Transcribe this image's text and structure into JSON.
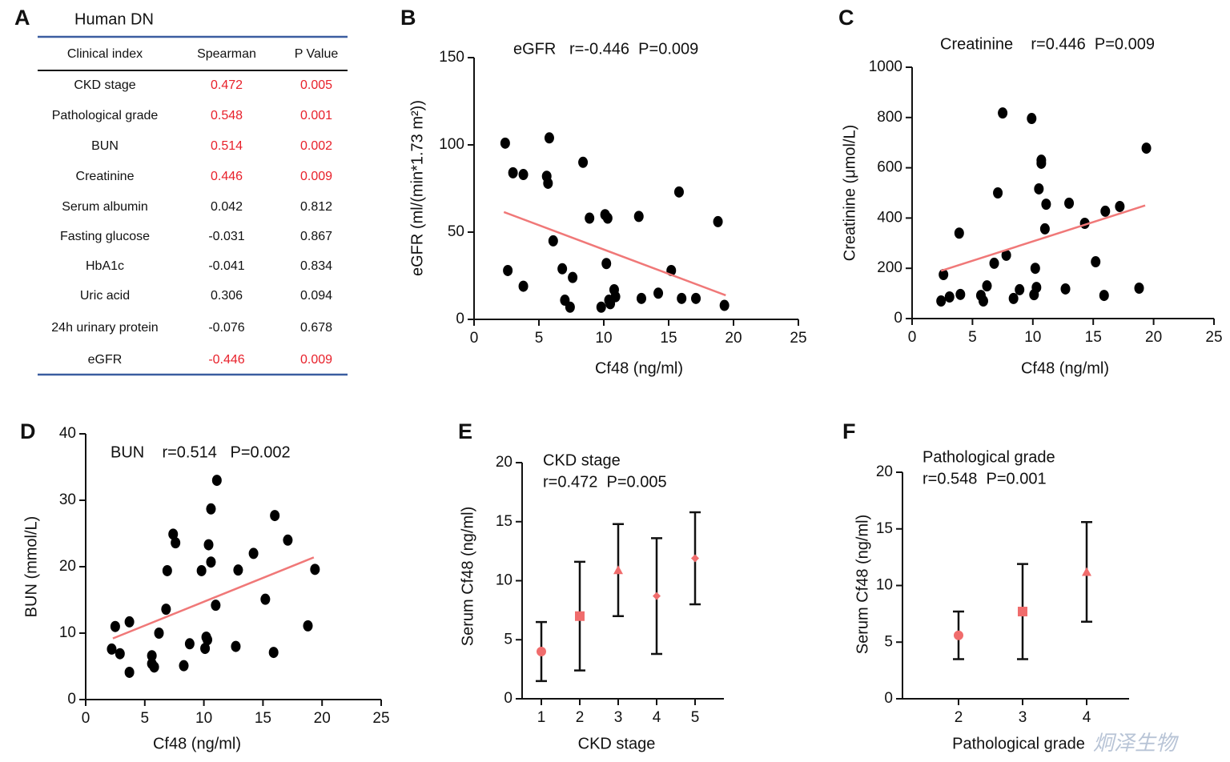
{
  "table": {
    "panel_label": "A",
    "title": "Human DN",
    "headers": [
      "Clinical index",
      "Spearman",
      "P Value"
    ],
    "highlight_color": "#e8202a",
    "rows": [
      {
        "cells": [
          "CKD stage",
          "0.472",
          "0.005"
        ],
        "highlight": true
      },
      {
        "cells": [
          "Pathological grade",
          "0.548",
          "0.001"
        ],
        "highlight": true
      },
      {
        "cells": [
          "BUN",
          "0.514",
          "0.002"
        ],
        "highlight": true
      },
      {
        "cells": [
          "Creatinine",
          "0.446",
          "0.009"
        ],
        "highlight": true
      },
      {
        "cells": [
          "Serum albumin",
          "0.042",
          "0.812"
        ],
        "highlight": false
      },
      {
        "cells": [
          "Fasting glucose",
          "-0.031",
          "0.867"
        ],
        "highlight": false
      },
      {
        "cells": [
          "HbA1c",
          "-0.041",
          "0.834"
        ],
        "highlight": false
      },
      {
        "cells": [
          "Uric acid",
          "0.306",
          "0.094"
        ],
        "highlight": false
      },
      {
        "cells": [
          "24h urinary protein",
          "-0.076",
          "0.678"
        ],
        "highlight": false
      },
      {
        "cells": [
          "eGFR",
          "-0.446",
          "0.009"
        ],
        "highlight": true
      }
    ]
  },
  "chart_data": [
    {
      "type": "scatter",
      "panel_label": "B",
      "annotation": [
        "eGFR   r=-0.446  P=0.009"
      ],
      "x_label": "Cf48 (ng/ml)",
      "y_label": "eGFR (ml/(min*1.73 m²))",
      "color": "#000000",
      "x": [
        2.4,
        2.6,
        3.0,
        3.8,
        3.8,
        5.6,
        5.7,
        5.8,
        6.1,
        6.8,
        7.0,
        7.4,
        7.6,
        8.4,
        8.9,
        9.8,
        10.1,
        10.2,
        10.3,
        10.4,
        10.5,
        10.8,
        10.9,
        12.7,
        12.9,
        14.2,
        15.2,
        15.8,
        16.0,
        17.1,
        18.8,
        19.3
      ],
      "y": [
        101,
        28,
        84,
        83,
        19,
        82,
        78,
        104,
        45,
        29,
        11,
        7,
        24,
        90,
        58,
        7,
        60,
        32,
        58,
        11,
        9,
        17,
        13,
        59,
        12,
        15,
        28,
        73,
        12,
        12,
        56,
        8
      ],
      "fit_line": {
        "x": [
          2.3,
          19.4
        ],
        "y": [
          61.5,
          13.8
        ],
        "color": "#f07878"
      },
      "xlim": [
        0,
        25
      ],
      "xticks": [
        0,
        5,
        10,
        15,
        20,
        25
      ],
      "ylim": [
        0,
        150
      ],
      "yticks": [
        0,
        50,
        100,
        150
      ]
    },
    {
      "type": "scatter",
      "panel_label": "C",
      "annotation": [
        "Creatinine    r=0.446  P=0.009"
      ],
      "x_label": "Cf48 (ng/ml)",
      "y_label": "Creatinine (μmol/L)",
      "color": "#000000",
      "x": [
        2.4,
        2.6,
        3.1,
        3.9,
        4.0,
        5.7,
        5.9,
        6.2,
        6.8,
        7.1,
        7.5,
        7.8,
        8.4,
        8.9,
        9.9,
        10.1,
        10.2,
        10.3,
        10.5,
        10.7,
        10.7,
        11.0,
        11.1,
        12.7,
        13.0,
        14.3,
        15.2,
        15.9,
        16.0,
        17.2,
        18.8,
        19.4
      ],
      "y": [
        70,
        175,
        86,
        340,
        96,
        92,
        70,
        130,
        220,
        500,
        818,
        252,
        80,
        115,
        796,
        95,
        200,
        124,
        516,
        630,
        618,
        357,
        455,
        118,
        459,
        379,
        226,
        92,
        427,
        446,
        121,
        678
      ],
      "fit_line": {
        "x": [
          2.4,
          19.3
        ],
        "y": [
          190,
          450
        ],
        "color": "#f07878"
      },
      "xlim": [
        0,
        25
      ],
      "xticks": [
        0,
        5,
        10,
        15,
        20,
        25
      ],
      "ylim": [
        0,
        1000
      ],
      "yticks": [
        0,
        200,
        400,
        600,
        800,
        1000
      ]
    },
    {
      "type": "scatter",
      "panel_label": "D",
      "annotation": [
        "BUN    r=0.514   P=0.002"
      ],
      "x_label": "Cf48 (ng/ml)",
      "y_label": "BUN (mmol/L)",
      "color": "#000000",
      "x": [
        2.2,
        2.5,
        2.9,
        3.7,
        3.7,
        5.6,
        5.6,
        5.8,
        6.2,
        6.8,
        6.9,
        7.4,
        7.6,
        8.3,
        8.8,
        9.8,
        10.1,
        10.2,
        10.3,
        10.4,
        10.6,
        10.6,
        11.0,
        11.1,
        12.7,
        12.9,
        14.2,
        15.2,
        15.9,
        16.0,
        17.1,
        18.8,
        19.4
      ],
      "y": [
        7.6,
        11.0,
        6.9,
        11.7,
        4.1,
        5.4,
        6.6,
        4.9,
        10.0,
        13.6,
        19.4,
        24.9,
        23.6,
        5.1,
        8.4,
        19.4,
        7.7,
        9.4,
        9.0,
        23.3,
        28.7,
        20.7,
        14.2,
        33.0,
        8.0,
        19.5,
        22.0,
        15.1,
        7.1,
        27.7,
        24.0,
        11.1,
        19.6
      ],
      "fit_line": {
        "x": [
          2.3,
          19.3
        ],
        "y": [
          9.2,
          21.4
        ],
        "color": "#f07878"
      },
      "xlim": [
        0,
        25
      ],
      "xticks": [
        0,
        5,
        10,
        15,
        20,
        25
      ],
      "ylim": [
        0,
        40
      ],
      "yticks": [
        0,
        10,
        20,
        30,
        40
      ]
    },
    {
      "type": "errorbar",
      "panel_label": "E",
      "annotation": [
        "CKD stage",
        "r=0.472  P=0.005"
      ],
      "x_label": "CKD stage",
      "y_label": "Serum Cf48 (ng/ml)",
      "color": "#f06c6c",
      "categories": [
        "1",
        "2",
        "3",
        "4",
        "5"
      ],
      "values": [
        4.0,
        7.0,
        10.9,
        8.7,
        11.9
      ],
      "errors": [
        2.5,
        4.6,
        3.9,
        4.9,
        3.9
      ],
      "markers": [
        "circle",
        "square",
        "triangle",
        "diamond",
        "diamond"
      ],
      "ylim": [
        0,
        20
      ],
      "yticks": [
        0,
        5,
        10,
        15,
        20
      ]
    },
    {
      "type": "errorbar",
      "panel_label": "F",
      "annotation": [
        "Pathological grade",
        "r=0.548  P=0.001"
      ],
      "x_label": "Pathological grade",
      "y_label": "Serum Cf48 (ng/ml)",
      "color": "#f06c6c",
      "categories": [
        "2",
        "3",
        "4"
      ],
      "values": [
        5.6,
        7.7,
        11.2
      ],
      "errors": [
        2.1,
        4.2,
        4.4
      ],
      "markers": [
        "circle",
        "square",
        "triangle"
      ],
      "ylim": [
        0,
        20
      ],
      "yticks": [
        0,
        5,
        10,
        15,
        20
      ]
    }
  ],
  "watermark": "炯泽生物"
}
